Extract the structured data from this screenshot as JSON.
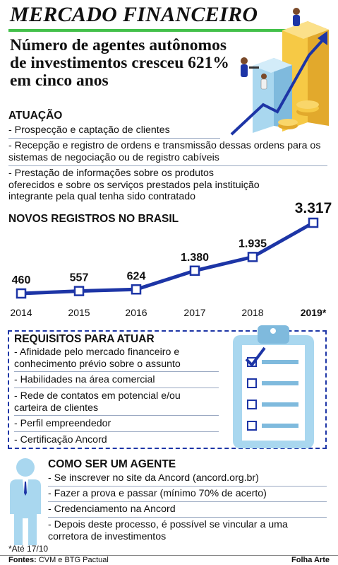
{
  "masthead": "MERCADO FINANCEIRO",
  "headline": "Número de agentes autônomos de investimentos cresceu 621% em cinco anos",
  "atuacao": {
    "title": "ATUAÇÃO",
    "items": [
      "- Prospecção e captação de clientes",
      "- Recepção e registro de ordens e transmissão dessas ordens para os sistemas de negociação ou de registro cabíveis",
      "- Prestação de informações sobre os produtos oferecidos e sobre os serviços prestados pela instituição integrante pela qual tenha sido contratado"
    ]
  },
  "chart_data": {
    "type": "line",
    "title": "NOVOS REGISTROS NO BRASIL",
    "categories": [
      "2014",
      "2015",
      "2016",
      "2017",
      "2018",
      "2019*"
    ],
    "values": [
      460,
      557,
      624,
      1380,
      1935,
      3317
    ],
    "value_labels": [
      "460",
      "557",
      "624",
      "1.380",
      "1.935",
      "3.317"
    ],
    "colors": {
      "line": "#1d35a6",
      "marker_fill": "#ffffff"
    }
  },
  "requisitos": {
    "title": "REQUISITOS PARA ATUAR",
    "items": [
      "- Afinidade pelo mercado financeiro e conhecimento prévio sobre o assunto",
      "- Habilidades na área comercial",
      "- Rede de contatos em potencial e/ou carteira de clientes",
      "- Perfil empreendedor",
      "- Certificação Ancord"
    ]
  },
  "como": {
    "title": "COMO SER UM AGENTE",
    "items": [
      "- Se inscrever no site da Ancord (ancord.org.br)",
      "- Fazer a prova e passar (mínimo 70% de acerto)",
      "- Credenciamento na Ancord",
      "- Depois deste processo, é possível se vincular a uma corretora de investimentos"
    ]
  },
  "footnote": "*Até 17/10",
  "sources_label": "Fontes:",
  "sources_text": " CVM e BTG Pactual",
  "credit": "Folha Arte",
  "icons": [
    "growth-illustration-icon",
    "clipboard-checklist-icon",
    "businessman-icon"
  ]
}
